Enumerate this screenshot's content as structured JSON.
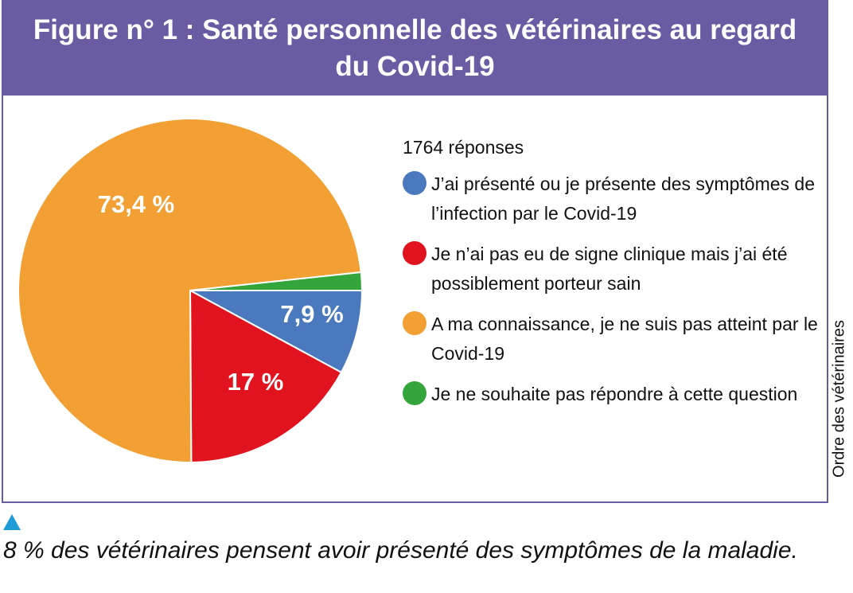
{
  "title": "Figure n° 1 : Santé personnelle des vétérinaires au regard du Covid-19",
  "side_label": "Ordre des vétérinaires",
  "caption": "8 % des vétérinaires pensent avoir présenté des symptômes de la maladie.",
  "chart_data": {
    "type": "pie",
    "title": "Figure n° 1 : Santé personnelle des vétérinaires au regard du Covid-19",
    "subtitle": "1764 réponses",
    "legend_position": "right",
    "slices": [
      {
        "label": "J’ai présenté ou je présente des symptômes de l’infection par le Covid-19",
        "value": 7.9,
        "display": "7,9 %",
        "color": "#4a79bd"
      },
      {
        "label": "Je n’ai pas eu de signe clinique mais j’ai été possiblement porteur sain",
        "value": 17,
        "display": "17 %",
        "color": "#e1131f"
      },
      {
        "label": "A ma connaissance, je ne suis pas atteint par le Covid-19",
        "value": 73.4,
        "display": "73,4 %",
        "color": "#f29f34"
      },
      {
        "label": "Je ne souhaite pas répondre à cette question",
        "value": 1.7,
        "display": "",
        "color": "#34a53b"
      }
    ]
  }
}
